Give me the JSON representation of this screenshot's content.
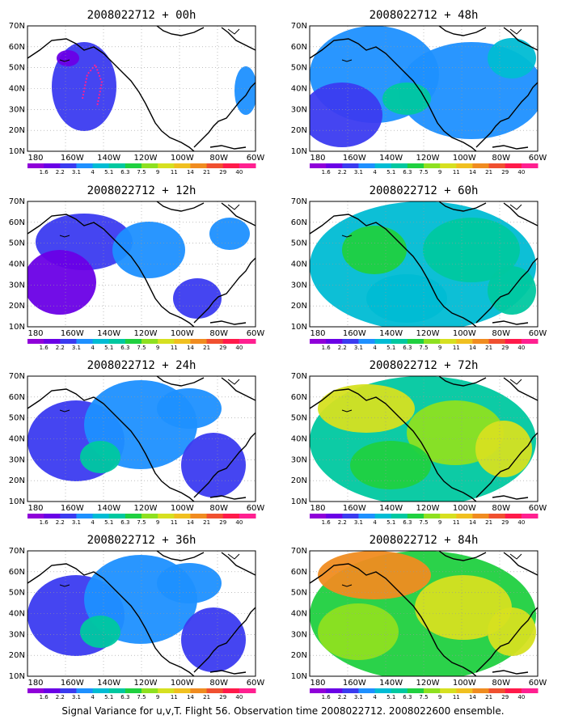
{
  "figure": {
    "caption": "Signal Variance for u,v,T. Flight 56. Observation time 2008022712. 2008022600 ensemble.",
    "lat_labels": [
      "70N",
      "60N",
      "50N",
      "40N",
      "30N",
      "20N",
      "10N"
    ],
    "lon_labels": [
      "180",
      "160W",
      "140W",
      "120W",
      "100W",
      "80W",
      "60W"
    ],
    "colorbar": {
      "labels": [
        "1.6",
        "2.2",
        "3.1",
        "4",
        "5.1",
        "6.3",
        "7.5",
        "9",
        "11",
        "14",
        "21",
        "29",
        "40"
      ],
      "colors": [
        "#8f00d9",
        "#6a00e6",
        "#3b3bf0",
        "#1e90ff",
        "#00bcd4",
        "#00c8a0",
        "#20d040",
        "#8ee020",
        "#d6e020",
        "#f0c020",
        "#f08c20",
        "#f05030",
        "#ff1a4a",
        "#ff2090"
      ]
    },
    "panels": [
      {
        "title": "2008022712 + 00h",
        "level": 0
      },
      {
        "title": "2008022712 + 48h",
        "level": 3
      },
      {
        "title": "2008022712 + 12h",
        "level": 1
      },
      {
        "title": "2008022712 + 60h",
        "level": 4
      },
      {
        "title": "2008022712 + 24h",
        "level": 2
      },
      {
        "title": "2008022712 + 72h",
        "level": 5
      },
      {
        "title": "2008022712 + 36h",
        "level": 2
      },
      {
        "title": "2008022712 + 84h",
        "level": 6
      }
    ],
    "map_colors": {
      "land_outline": "#000000",
      "grid": "#999999",
      "no_data": "#ffffff",
      "flight_track": "#ff2090"
    }
  }
}
